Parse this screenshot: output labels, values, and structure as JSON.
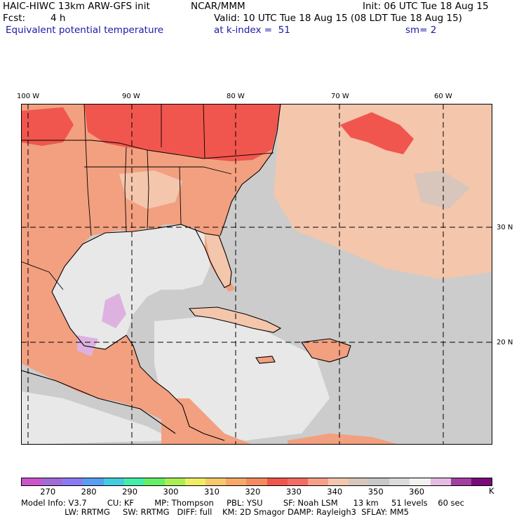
{
  "header": {
    "model_title": "HAIC-HIWC 13km ARW-GFS init",
    "org": "NCAR/MMM",
    "init": "Init: 06 UTC Tue 18 Aug 15",
    "fcst_label": "Fcst:",
    "fcst_value": "4 h",
    "valid": "Valid: 10 UTC Tue 18 Aug 15 (08 LDT Tue 18 Aug 15)",
    "field": "Equivalent potential temperature",
    "level": "at k-index =  51",
    "smoothing": "sm= 2"
  },
  "map": {
    "lon_labels": [
      "100 W",
      "90 W",
      "80 W",
      "70 W",
      "60 W"
    ],
    "lat_labels": [
      "30 N",
      "20 N"
    ],
    "land_color": "#f2a080",
    "hot_color": "#f0564e",
    "warm_color": "#f4c6ac",
    "ocean_grey": "#cccccc",
    "light_grey": "#e8e8e8",
    "cool_purple": "#ddb2e0"
  },
  "colorbar": {
    "colors": [
      "#cc55cc",
      "#a06cd6",
      "#8a7cf0",
      "#5a9ef2",
      "#44cce0",
      "#44eeaa",
      "#66ee66",
      "#aaee55",
      "#eeee66",
      "#f8c86a",
      "#f8a868",
      "#f48a5e",
      "#f0564e",
      "#f46c64",
      "#f6a088",
      "#f4c6ac",
      "#d8c6bc",
      "#c8c8c8",
      "#dcdcdc",
      "#f2f2f2",
      "#e4bce4",
      "#a040a0",
      "#7a0a7a"
    ],
    "labels": [
      "270",
      "280",
      "290",
      "300",
      "310",
      "320",
      "330",
      "340",
      "350",
      "360"
    ],
    "unit": "K"
  },
  "footer": {
    "line1": "Model Info: V3.7        CU: KF        MP: Thompson     PBL: YSU        SF: Noah LSM      13 km     51 levels    60 sec",
    "line2": "                 LW: RRTMG     SW: RRTMG   DIFF: full    KM: 2D Smagor DAMP: Rayleigh3  SFLAY: MM5"
  }
}
